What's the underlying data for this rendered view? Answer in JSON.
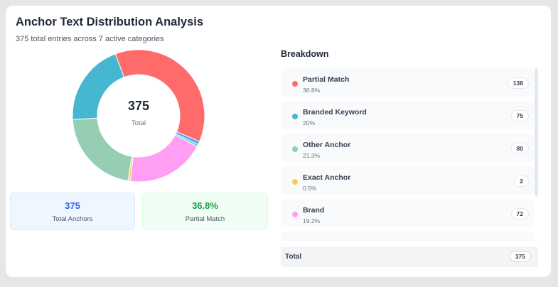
{
  "header": {
    "title": "Anchor Text Distribution Analysis",
    "subtitle": "375 total entries across 7 active categories"
  },
  "donut": {
    "center_value": "375",
    "center_label": "Total"
  },
  "stats": {
    "total_anchors_value": "375",
    "total_anchors_label": "Total Anchors",
    "partial_match_value": "36.8%",
    "partial_match_label": "Partial Match"
  },
  "breakdown": {
    "title": "Breakdown",
    "items": [
      {
        "name": "Partial Match",
        "percent": "36.8%",
        "count": "138",
        "color": "#ff6b6b"
      },
      {
        "name": "Branded Keyword",
        "percent": "20%",
        "count": "75",
        "color": "#45b7d1"
      },
      {
        "name": "Other Anchor",
        "percent": "21.3%",
        "count": "80",
        "color": "#96ceb4"
      },
      {
        "name": "Exact Anchor",
        "percent": "0.5%",
        "count": "2",
        "color": "#feca57"
      },
      {
        "name": "Brand",
        "percent": "19.2%",
        "count": "72",
        "color": "#ff9ff3"
      }
    ],
    "total_label": "Total",
    "total_value": "375"
  },
  "chart_data": {
    "type": "pie",
    "variant": "donut",
    "total": 375,
    "slices": [
      {
        "label": "Partial Match",
        "value": 138,
        "color": "#ff6b6b"
      },
      {
        "label": "",
        "value": 3,
        "color": "#54a0ff"
      },
      {
        "label": "",
        "value": 2,
        "color": "#5cd3c0"
      },
      {
        "label": "Brand",
        "value": 72,
        "color": "#ff9ff3"
      },
      {
        "label": "Exact Anchor",
        "value": 2,
        "color": "#feca57"
      },
      {
        "label": "Other Anchor",
        "value": 80,
        "color": "#96ceb4"
      },
      {
        "label": "Branded Keyword",
        "value": 75,
        "color": "#45b7d1"
      }
    ]
  }
}
